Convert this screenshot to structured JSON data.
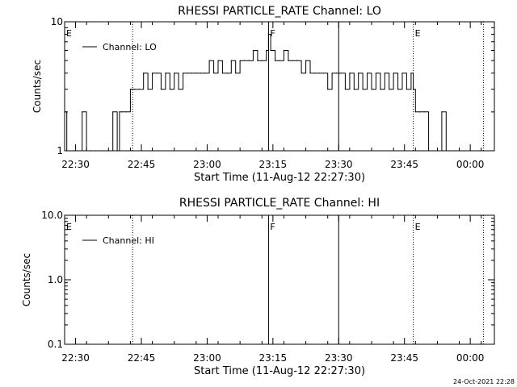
{
  "footer_timestamp": "24-Oct-2021 22:28",
  "chart_data": [
    {
      "type": "line",
      "title": "RHESSI PARTICLE_RATE Channel: LO",
      "xlabel": "Start Time (11-Aug-12 22:27:30)",
      "ylabel": "Counts/sec",
      "yscale": "log",
      "ylim": [
        1,
        10
      ],
      "ytick_labels": [
        "1",
        "10"
      ],
      "xlim_minutes": [
        0,
        98
      ],
      "xtick_labels": [
        "22:30",
        "22:45",
        "23:00",
        "23:15",
        "23:30",
        "23:45",
        "00:00"
      ],
      "xtick_minutes": [
        2.5,
        17.5,
        32.5,
        47.5,
        62.5,
        77.5,
        92.5
      ],
      "legend": "Channel: LO",
      "legend_position": "top-left",
      "series": [
        {
          "name": "Channel: LO",
          "minutes": [
            0,
            0.5,
            1,
            2,
            3,
            4,
            5,
            6,
            7,
            8,
            9,
            10,
            11,
            12,
            12.5,
            13,
            14,
            15,
            15.5,
            16,
            17,
            18,
            19,
            20,
            21,
            22,
            23,
            24,
            25,
            26,
            27,
            28,
            29,
            30,
            31,
            32,
            33,
            34,
            35,
            36,
            37,
            38,
            39,
            40,
            41,
            42,
            43,
            44,
            45,
            46,
            46.5,
            47,
            48,
            49,
            50,
            51,
            52,
            53,
            54,
            55,
            56,
            57,
            58,
            59,
            60,
            61,
            62,
            63,
            64,
            65,
            66,
            67,
            68,
            69,
            70,
            71,
            72,
            73,
            74,
            75,
            76,
            77,
            78,
            79,
            79.5,
            80,
            81,
            82,
            83,
            84,
            85,
            86,
            87,
            88,
            89,
            90,
            91
          ],
          "values": [
            2,
            1,
            1,
            1,
            1,
            2,
            1,
            1,
            1,
            1,
            1,
            1,
            2,
            1,
            2,
            2,
            2,
            3,
            3,
            3,
            3,
            4,
            3,
            4,
            4,
            3,
            4,
            3,
            4,
            3,
            4,
            4,
            4,
            4,
            4,
            4,
            5,
            4,
            5,
            4,
            4,
            5,
            4,
            5,
            5,
            5,
            6,
            5,
            5,
            6,
            8,
            6,
            5,
            5,
            6,
            5,
            5,
            5,
            4,
            5,
            4,
            4,
            4,
            4,
            3,
            4,
            4,
            4,
            3,
            4,
            3,
            4,
            3,
            4,
            3,
            4,
            3,
            4,
            3,
            4,
            3,
            4,
            3,
            4,
            3,
            2,
            2,
            2,
            1,
            1,
            1,
            2,
            1,
            1,
            1,
            1,
            1
          ]
        }
      ],
      "markers": [
        {
          "label": "E",
          "minute": 0,
          "style": "text"
        },
        {
          "label": "",
          "minute": 15.5,
          "style": "dotted"
        },
        {
          "label": "F",
          "minute": 46.5,
          "style": "solid"
        },
        {
          "label": "",
          "minute": 62.5,
          "style": "solid"
        },
        {
          "label": "E",
          "minute": 79.5,
          "style": "dotted"
        },
        {
          "label": "",
          "minute": 95.5,
          "style": "dotted"
        }
      ]
    },
    {
      "type": "line",
      "title": "RHESSI PARTICLE_RATE Channel: HI",
      "xlabel": "Start Time (11-Aug-12 22:27:30)",
      "ylabel": "Counts/sec",
      "yscale": "log",
      "ylim": [
        0.1,
        10
      ],
      "ytick_labels": [
        "0.1",
        "1.0",
        "10.0"
      ],
      "xlim_minutes": [
        0,
        98
      ],
      "xtick_labels": [
        "22:30",
        "22:45",
        "23:00",
        "23:15",
        "23:30",
        "23:45",
        "00:00"
      ],
      "xtick_minutes": [
        2.5,
        17.5,
        32.5,
        47.5,
        62.5,
        77.5,
        92.5
      ],
      "legend": "Channel: HI",
      "legend_position": "top-left",
      "series": [
        {
          "name": "Channel: HI",
          "minutes": [],
          "values": []
        }
      ],
      "markers": [
        {
          "label": "E",
          "minute": 0,
          "style": "text"
        },
        {
          "label": "",
          "minute": 15.5,
          "style": "dotted"
        },
        {
          "label": "F",
          "minute": 46.5,
          "style": "solid"
        },
        {
          "label": "",
          "minute": 62.5,
          "style": "solid"
        },
        {
          "label": "E",
          "minute": 79.5,
          "style": "dotted"
        },
        {
          "label": "",
          "minute": 95.5,
          "style": "dotted"
        }
      ]
    }
  ]
}
